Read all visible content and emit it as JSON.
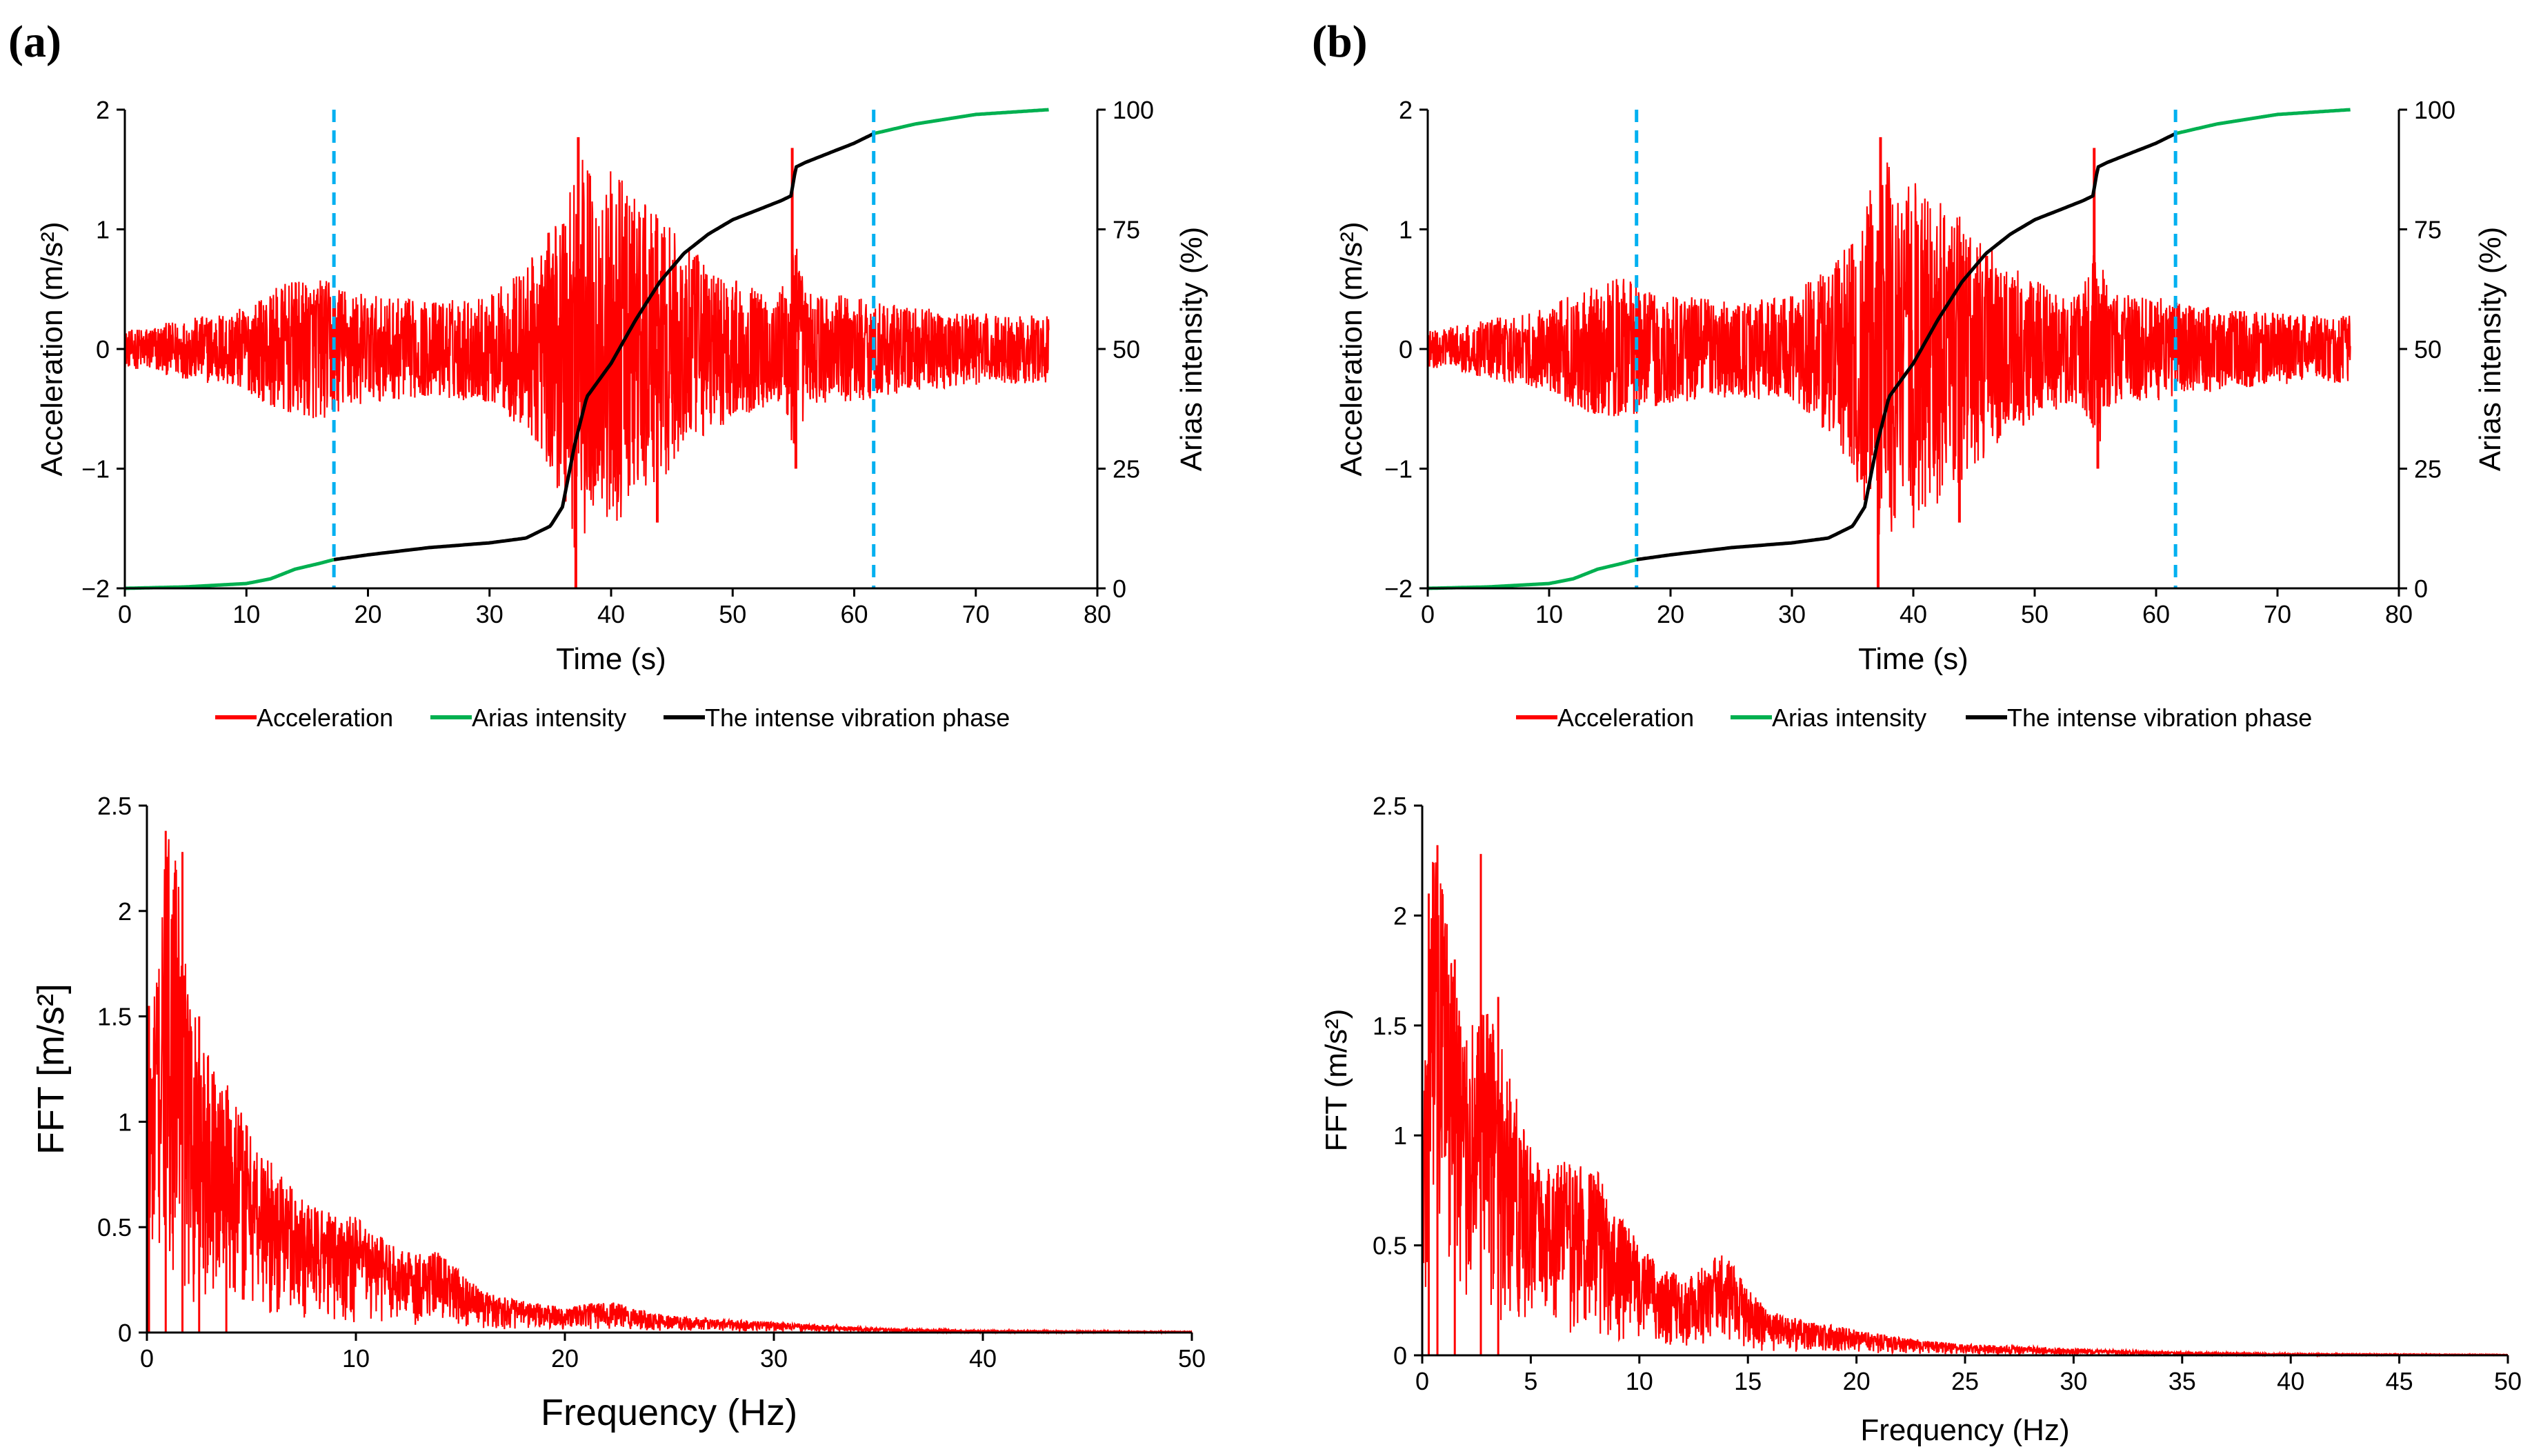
{
  "panels": [
    {
      "label": "(a)"
    },
    {
      "label": "(b)"
    }
  ],
  "colors": {
    "acceleration": "#ff0000",
    "arias": "#00b050",
    "intense": "#000000",
    "marker": "#00b0f0",
    "axis": "#000000"
  },
  "legend": {
    "acceleration": "Acceleration",
    "arias": "Arias intensity",
    "intense": "The intense vibration phase"
  },
  "chart_data": [
    {
      "id": "a-time",
      "type": "line",
      "title": "",
      "xlabel": "Time (s)",
      "ylabel": "Acceleration (m/s²)",
      "y2label": "Arias intensity (%)",
      "xlim": [
        0,
        80
      ],
      "ylim": [
        -2,
        2
      ],
      "y2lim": [
        0,
        100
      ],
      "xticks": [
        "0",
        "10",
        "20",
        "30",
        "40",
        "50",
        "60",
        "70",
        "80"
      ],
      "yticks": [
        "−2",
        "−1",
        "0",
        "1",
        "2"
      ],
      "y2ticks": [
        "0",
        "25",
        "50",
        "75",
        "100"
      ],
      "grid": false,
      "legend_position": "bottom",
      "vlines": [
        17.2,
        61.6
      ],
      "acceleration_envelope": {
        "t": [
          0,
          5,
          10,
          13,
          16,
          20,
          25,
          30,
          33,
          35,
          36,
          37,
          38,
          39,
          40,
          41,
          42,
          43,
          44,
          45,
          46,
          48,
          50,
          52,
          54,
          55,
          56,
          58,
          60,
          62,
          65,
          70,
          76
        ],
        "amp": [
          0.15,
          0.25,
          0.35,
          0.55,
          0.6,
          0.45,
          0.4,
          0.45,
          0.7,
          1.0,
          1.3,
          1.7,
          1.6,
          1.3,
          1.5,
          1.4,
          1.3,
          1.2,
          1.1,
          1.0,
          0.9,
          0.7,
          0.6,
          0.5,
          0.5,
          1.0,
          0.5,
          0.45,
          0.45,
          0.4,
          0.35,
          0.3,
          0.28
        ]
      },
      "acceleration_spikes": [
        [
          37.1,
          -2.0
        ],
        [
          37.3,
          1.77
        ],
        [
          43.8,
          -1.45
        ],
        [
          54.9,
          1.68
        ],
        [
          55.2,
          -1.0
        ]
      ],
      "arias_intensity": {
        "t": [
          0,
          5,
          10,
          12,
          14,
          16,
          17.2,
          20,
          25,
          30,
          33,
          35,
          36,
          37,
          38,
          40,
          42,
          44,
          46,
          48,
          50,
          52,
          54,
          54.8,
          55.2,
          56,
          58,
          60,
          61.6,
          65,
          70,
          76
        ],
        "pct": [
          0,
          0.3,
          1.0,
          2.0,
          4.0,
          5.2,
          6.0,
          7.0,
          8.5,
          9.5,
          10.5,
          13,
          17,
          30,
          40,
          47,
          56,
          64,
          70,
          74,
          77,
          79,
          81,
          82,
          88,
          89,
          91,
          93,
          95,
          97,
          99,
          100
        ]
      }
    },
    {
      "id": "a-fft",
      "type": "line",
      "title": "",
      "xlabel": "Frequency (Hz)",
      "ylabel": "FFT [m/s²]",
      "xlim": [
        0,
        50
      ],
      "ylim": [
        0,
        2.5
      ],
      "xticks": [
        "0",
        "10",
        "20",
        "30",
        "40",
        "50"
      ],
      "yticks": [
        "0",
        "0.5",
        "1",
        "1.5",
        "2",
        "2.5"
      ],
      "grid": false,
      "envelope": {
        "f": [
          0,
          0.5,
          1,
          1.5,
          2,
          3,
          4,
          5,
          6,
          8,
          10,
          12,
          14,
          16,
          18,
          20,
          22,
          25,
          28,
          30,
          35,
          40,
          50
        ],
        "amp": [
          1.2,
          1.8,
          2.38,
          2.2,
          1.6,
          1.3,
          1.2,
          0.95,
          0.8,
          0.6,
          0.55,
          0.4,
          0.38,
          0.2,
          0.15,
          0.12,
          0.15,
          0.08,
          0.06,
          0.05,
          0.02,
          0.01,
          0.005
        ]
      },
      "peaks": [
        [
          0.1,
          1.55
        ],
        [
          0.9,
          2.38
        ],
        [
          1.7,
          2.28
        ],
        [
          2.5,
          1.5
        ],
        [
          3.8,
          1.15
        ]
      ]
    },
    {
      "id": "b-time",
      "type": "line",
      "title": "",
      "xlabel": "Time (s)",
      "ylabel": "Acceleration (m/s²)",
      "y2label": "Arias intensity (%)",
      "xlim": [
        0,
        80
      ],
      "ylim": [
        -2,
        2
      ],
      "y2lim": [
        0,
        100
      ],
      "xticks": [
        "0",
        "10",
        "20",
        "30",
        "40",
        "50",
        "60",
        "70",
        "80"
      ],
      "yticks": [
        "−2",
        "−1",
        "0",
        "1",
        "2"
      ],
      "y2ticks": [
        "0",
        "25",
        "50",
        "75",
        "100"
      ],
      "grid": false,
      "legend_position": "bottom",
      "vlines": [
        17.2,
        61.6
      ],
      "acceleration_envelope": {
        "t": [
          0,
          5,
          10,
          13,
          16,
          20,
          25,
          30,
          33,
          35,
          36,
          37,
          38,
          39,
          40,
          41,
          42,
          43,
          44,
          45,
          46,
          48,
          50,
          52,
          54,
          55,
          56,
          58,
          60,
          62,
          65,
          70,
          76
        ],
        "amp": [
          0.15,
          0.25,
          0.35,
          0.55,
          0.6,
          0.45,
          0.4,
          0.45,
          0.7,
          1.0,
          1.3,
          1.7,
          1.6,
          1.3,
          1.5,
          1.4,
          1.3,
          1.2,
          1.1,
          1.0,
          0.9,
          0.7,
          0.6,
          0.5,
          0.5,
          1.0,
          0.5,
          0.45,
          0.45,
          0.4,
          0.35,
          0.3,
          0.28
        ]
      },
      "acceleration_spikes": [
        [
          37.1,
          -2.0
        ],
        [
          37.3,
          1.77
        ],
        [
          43.8,
          -1.45
        ],
        [
          54.9,
          1.68
        ],
        [
          55.2,
          -1.0
        ]
      ],
      "arias_intensity": {
        "t": [
          0,
          5,
          10,
          12,
          14,
          16,
          17.2,
          20,
          25,
          30,
          33,
          35,
          36,
          37,
          38,
          40,
          42,
          44,
          46,
          48,
          50,
          52,
          54,
          54.8,
          55.2,
          56,
          58,
          60,
          61.6,
          65,
          70,
          76
        ],
        "pct": [
          0,
          0.3,
          1.0,
          2.0,
          4.0,
          5.2,
          6.0,
          7.0,
          8.5,
          9.5,
          10.5,
          13,
          17,
          30,
          40,
          47,
          56,
          64,
          70,
          74,
          77,
          79,
          81,
          82,
          88,
          89,
          91,
          93,
          95,
          97,
          99,
          100
        ]
      }
    },
    {
      "id": "b-fft",
      "type": "line",
      "title": "",
      "xlabel": "Frequency (Hz)",
      "ylabel": "FFT (m/s²)",
      "xlim": [
        0,
        50
      ],
      "ylim": [
        0,
        2.5
      ],
      "xticks": [
        "0",
        "5",
        "10",
        "15",
        "20",
        "25",
        "30",
        "35",
        "40",
        "45",
        "50"
      ],
      "yticks": [
        "0",
        "0.5",
        "1",
        "1.5",
        "2",
        "2.5"
      ],
      "grid": false,
      "envelope": {
        "f": [
          0,
          0.5,
          1,
          1.5,
          2,
          3,
          4,
          5,
          6,
          8,
          10,
          12,
          14,
          15,
          16,
          18,
          20,
          22,
          25,
          28,
          30,
          35,
          40,
          50
        ],
        "amp": [
          1.0,
          2.3,
          2.1,
          1.8,
          1.5,
          1.6,
          1.3,
          0.95,
          0.9,
          0.85,
          0.5,
          0.35,
          0.48,
          0.3,
          0.2,
          0.15,
          0.12,
          0.08,
          0.05,
          0.04,
          0.03,
          0.015,
          0.008,
          0.004
        ]
      },
      "peaks": [
        [
          0.3,
          2.1
        ],
        [
          0.7,
          2.32
        ],
        [
          2.7,
          2.28
        ],
        [
          3.5,
          1.63
        ],
        [
          1.5,
          1.8
        ]
      ]
    }
  ]
}
